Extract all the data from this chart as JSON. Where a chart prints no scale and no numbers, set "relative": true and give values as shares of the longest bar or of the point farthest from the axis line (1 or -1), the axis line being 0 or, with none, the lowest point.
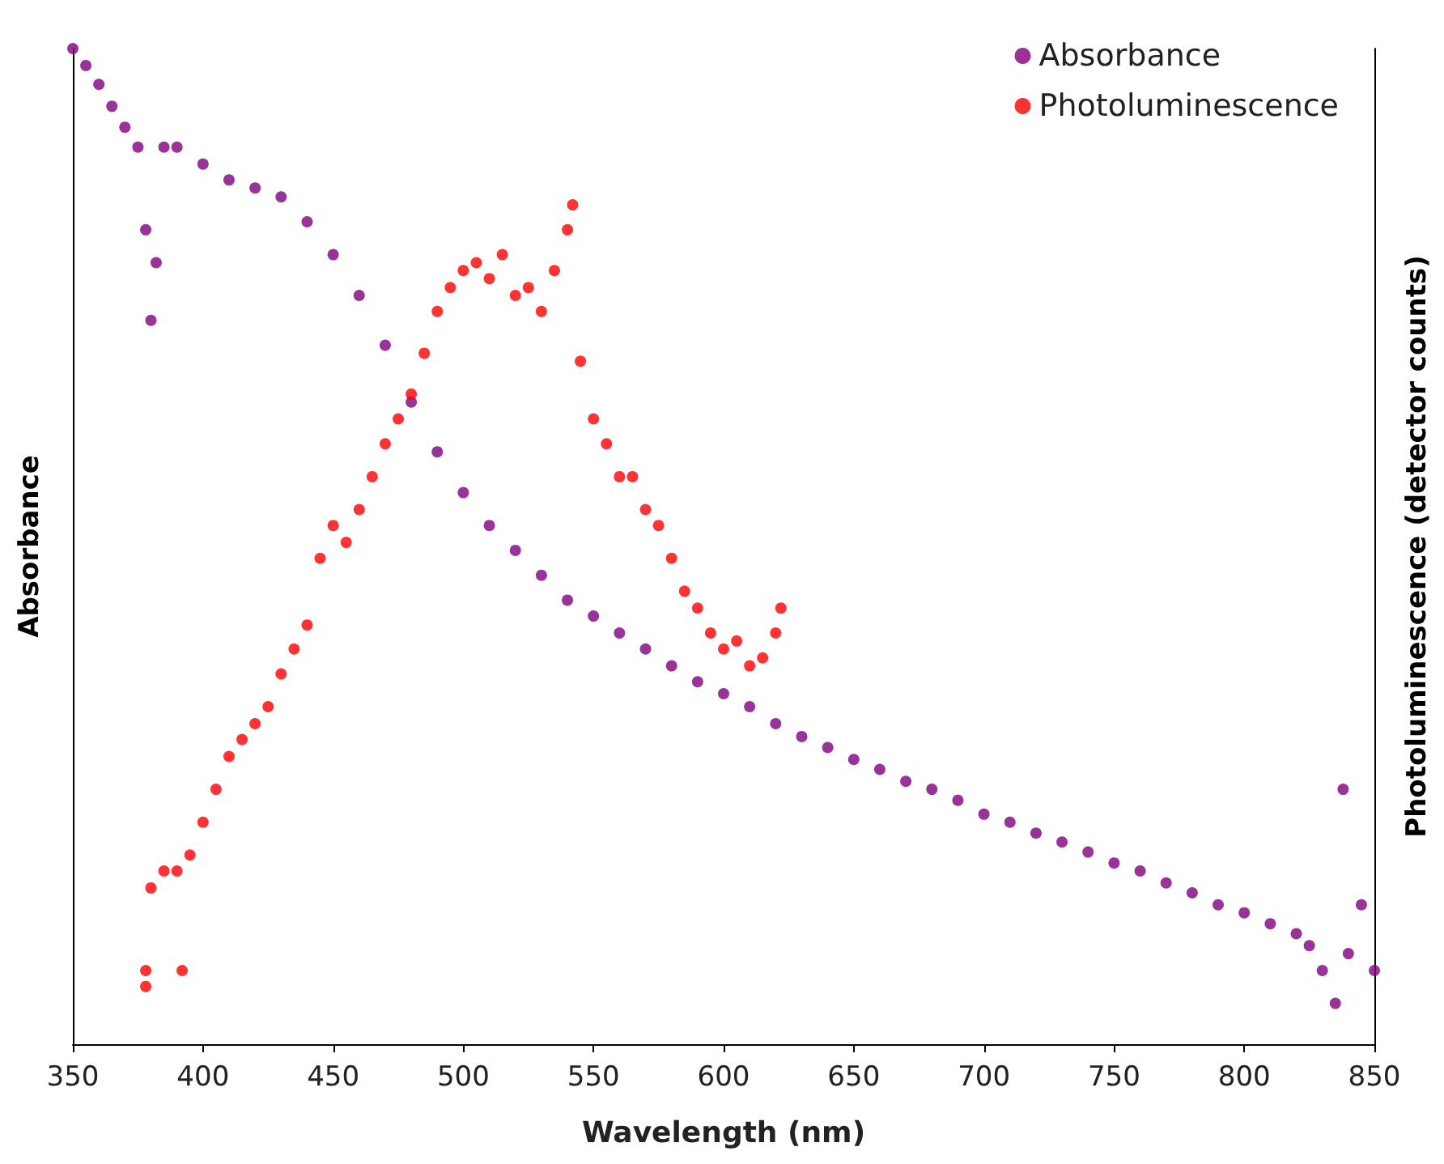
{
  "chart_data": {
    "type": "scatter",
    "relative": true,
    "xlabel": "Wavelength (nm)",
    "ylabel": "Absorbance",
    "y2label": "Photoluminescence (detector counts)",
    "xlim": [
      350,
      850
    ],
    "xticks": [
      350,
      400,
      450,
      500,
      550,
      600,
      650,
      700,
      750,
      800,
      850
    ],
    "grid": false,
    "legend": "top right",
    "marker": "circle",
    "series": [
      {
        "name": "Absorbance",
        "color": "#800080",
        "x": [
          350,
          355,
          360,
          365,
          370,
          375,
          378,
          380,
          382,
          385,
          390,
          400,
          410,
          420,
          430,
          440,
          450,
          460,
          470,
          480,
          490,
          500,
          510,
          520,
          530,
          540,
          550,
          560,
          570,
          580,
          590,
          600,
          610,
          620,
          630,
          640,
          650,
          660,
          670,
          680,
          690,
          700,
          710,
          720,
          730,
          740,
          750,
          760,
          770,
          780,
          790,
          800,
          810,
          820,
          825,
          830,
          835,
          838,
          840,
          845,
          850
        ],
        "values": [
          1.0,
          0.983,
          0.964,
          0.942,
          0.921,
          0.901,
          0.818,
          0.727,
          0.785,
          0.901,
          0.901,
          0.884,
          0.868,
          0.86,
          0.851,
          0.826,
          0.793,
          0.752,
          0.702,
          0.645,
          0.595,
          0.554,
          0.521,
          0.496,
          0.471,
          0.446,
          0.43,
          0.413,
          0.397,
          0.38,
          0.364,
          0.352,
          0.339,
          0.322,
          0.309,
          0.298,
          0.286,
          0.276,
          0.264,
          0.256,
          0.245,
          0.231,
          0.223,
          0.212,
          0.203,
          0.193,
          0.182,
          0.174,
          0.162,
          0.152,
          0.14,
          0.132,
          0.121,
          0.111,
          0.099,
          0.074,
          0.041,
          0.256,
          0.091,
          0.14,
          0.074
        ]
      },
      {
        "name": "Photoluminescence",
        "color": "#ff0000",
        "axis": "y2",
        "x": [
          378,
          378,
          380,
          385,
          390,
          392,
          395,
          400,
          405,
          410,
          415,
          420,
          425,
          430,
          435,
          440,
          445,
          450,
          455,
          460,
          465,
          470,
          475,
          480,
          485,
          490,
          495,
          500,
          505,
          510,
          515,
          520,
          525,
          530,
          535,
          540,
          542,
          545,
          550,
          555,
          560,
          565,
          570,
          575,
          580,
          585,
          590,
          595,
          600,
          605,
          610,
          615,
          620,
          622
        ],
        "values": [
          0.074,
          0.058,
          0.157,
          0.174,
          0.174,
          0.074,
          0.19,
          0.223,
          0.256,
          0.289,
          0.306,
          0.322,
          0.339,
          0.372,
          0.397,
          0.421,
          0.488,
          0.521,
          0.504,
          0.537,
          0.57,
          0.603,
          0.628,
          0.653,
          0.694,
          0.736,
          0.76,
          0.777,
          0.785,
          0.769,
          0.793,
          0.752,
          0.76,
          0.736,
          0.777,
          0.818,
          0.843,
          0.686,
          0.628,
          0.603,
          0.57,
          0.57,
          0.537,
          0.521,
          0.488,
          0.455,
          0.438,
          0.413,
          0.397,
          0.405,
          0.38,
          0.388,
          0.413,
          0.438
        ]
      }
    ]
  }
}
